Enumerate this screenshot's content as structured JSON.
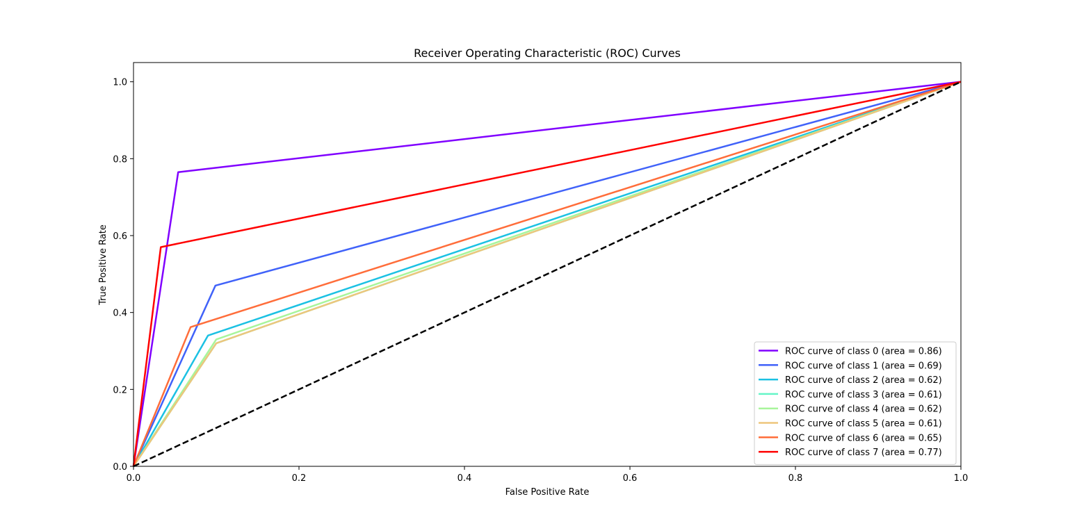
{
  "chart_data": {
    "type": "line",
    "title": "Receiver Operating Characteristic (ROC) Curves",
    "xlabel": "False Positive Rate",
    "ylabel": "True Positive Rate",
    "xlim": [
      0.0,
      1.0
    ],
    "ylim": [
      0.0,
      1.05
    ],
    "x_ticks": [
      0.0,
      0.2,
      0.4,
      0.6,
      0.8,
      1.0
    ],
    "y_ticks": [
      0.0,
      0.2,
      0.4,
      0.6,
      0.8,
      1.0
    ],
    "x_tick_labels": [
      "0.0",
      "0.2",
      "0.4",
      "0.6",
      "0.8",
      "1.0"
    ],
    "y_tick_labels": [
      "0.0",
      "0.2",
      "0.4",
      "0.6",
      "0.8",
      "1.0"
    ],
    "grid": false,
    "legend_position": "lower-right",
    "series": [
      {
        "name": "ROC curve of class 0 (area = 0.86)",
        "color": "#8000ff",
        "x": [
          0.0,
          0.054,
          1.0
        ],
        "y": [
          0.0,
          0.765,
          1.0
        ]
      },
      {
        "name": "ROC curve of class 1 (area = 0.69)",
        "color": "#4062f9",
        "x": [
          0.0,
          0.099,
          1.0
        ],
        "y": [
          0.0,
          0.47,
          1.0
        ]
      },
      {
        "name": "ROC curve of class 2 (area = 0.62)",
        "color": "#1bc1e3",
        "x": [
          0.0,
          0.09,
          1.0
        ],
        "y": [
          0.0,
          0.34,
          1.0
        ]
      },
      {
        "name": "ROC curve of class 3 (area = 0.61)",
        "color": "#64f5c7",
        "x": [
          0.0,
          0.1,
          1.0
        ],
        "y": [
          0.0,
          0.32,
          1.0
        ]
      },
      {
        "name": "ROC curve of class 4 (area = 0.62)",
        "color": "#a8f59b",
        "x": [
          0.0,
          0.1,
          1.0
        ],
        "y": [
          0.0,
          0.33,
          1.0
        ]
      },
      {
        "name": "ROC curve of class 5 (area = 0.61)",
        "color": "#edc67c",
        "x": [
          0.0,
          0.1,
          1.0
        ],
        "y": [
          0.0,
          0.32,
          1.0
        ]
      },
      {
        "name": "ROC curve of class 6 (area = 0.65)",
        "color": "#ff6d3a",
        "x": [
          0.0,
          0.069,
          1.0
        ],
        "y": [
          0.0,
          0.362,
          1.0
        ]
      },
      {
        "name": "ROC curve of class 7 (area = 0.77)",
        "color": "#ff0000",
        "x": [
          0.0,
          0.033,
          1.0
        ],
        "y": [
          0.0,
          0.57,
          1.0
        ]
      }
    ],
    "reference_line": {
      "color": "#000000",
      "style": "dashed",
      "x": [
        0.0,
        1.0
      ],
      "y": [
        0.0,
        1.0
      ]
    }
  }
}
